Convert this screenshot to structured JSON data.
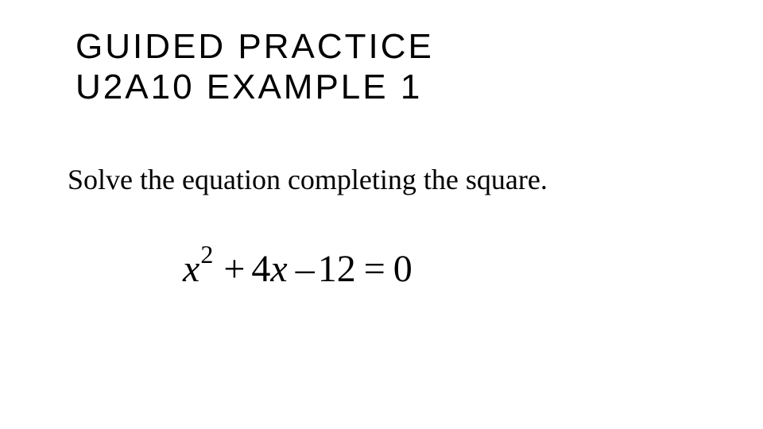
{
  "heading": {
    "line1": "GUIDED PRACTICE",
    "line2": "U2A10  EXAMPLE 1"
  },
  "instruction": "Solve the equation completing the square.",
  "equation": {
    "variable": "x",
    "exponent": "2",
    "plus": "+",
    "coef": "4",
    "variable2": "x",
    "minus": "–",
    "constant": "12",
    "equals": "=",
    "rhs": "0"
  },
  "styles": {
    "background_color": "#ffffff",
    "heading_color": "#000000",
    "heading_fontsize": 44,
    "heading_letterspacing": 3,
    "instruction_color": "#000000",
    "instruction_fontsize": 36,
    "instruction_fontfamily": "Times New Roman",
    "equation_color": "#000000",
    "equation_fontsize": 48,
    "equation_fontfamily": "Times New Roman",
    "equation_sup_fontsize": 32
  }
}
